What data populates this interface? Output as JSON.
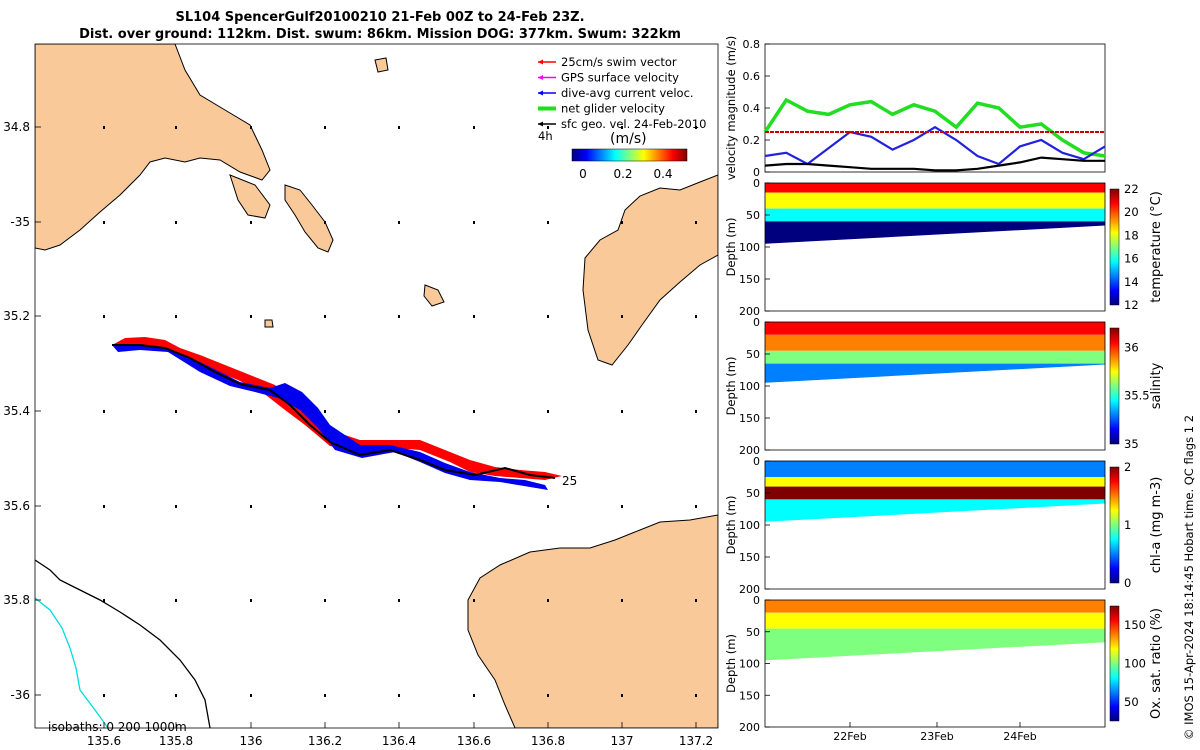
{
  "header": {
    "title_line1": "SL104 SpencerGulf20100210 21-Feb 00Z to 24-Feb 23Z.",
    "title_line2": "Dist. over ground: 112km. Dist. swum: 86km. Mission DOG: 377km. Swum: 322km"
  },
  "credit": "© IMOS 15-Apr-2024 18:14:45 Hobart time. QC flags 1  2",
  "colors": {
    "land": "#f9c99a",
    "track_red": "#ff0000",
    "track_blue": "#0000ee",
    "net_green": "#22dd22",
    "swim_line": "#cc0000",
    "isobath_0": "#000000",
    "isobath_200": "#00dddd",
    "isobath_1000": "#000000"
  },
  "map": {
    "legend": [
      {
        "label": "25cm/s swim vector",
        "color": "#ff0000",
        "icon": "arrow-icon"
      },
      {
        "label": "GPS surface velocity",
        "color": "#ff00ff",
        "icon": "arrow-icon"
      },
      {
        "label": "dive-avg current veloc.",
        "color": "#0000ff",
        "icon": "arrow-icon"
      },
      {
        "label": "net glider velocity",
        "color": "#22dd22",
        "icon": "arrow-icon"
      },
      {
        "label": "sfc geo. vel. 24-Feb-2010",
        "color": "#000000",
        "icon": "arrow-icon"
      }
    ],
    "legend_extra": "4h",
    "colorbar_title": "(m/s)",
    "colorbar_ticks": [
      "0",
      "0.2",
      "0.4"
    ],
    "isobaths_label": "isobaths: 0   200  1000m",
    "end_label": "25",
    "lon_ticks": [
      "135.6",
      "135.8",
      "136",
      "136.2",
      "136.4",
      "136.6",
      "136.8",
      "137",
      "137.2"
    ],
    "lat_ticks": [
      "34.8",
      "-35",
      "35.2",
      "35.4",
      "35.6",
      "35.8",
      "-36"
    ]
  },
  "chart_data": [
    {
      "type": "line",
      "title": "SL104 SpencerGulf20100210 21-Feb 00Z to 24-Feb 23Z.",
      "xlabel": "",
      "ylabel": "velocity magnitude (m/s)",
      "ylim": [
        0,
        0.8
      ],
      "yticks": [
        "0",
        "0.2",
        "0.4",
        "0.6",
        "0.8"
      ],
      "x": [
        0,
        0.25,
        0.5,
        0.75,
        1,
        1.25,
        1.5,
        1.75,
        2,
        2.25,
        2.5,
        2.75,
        3,
        3.25,
        3.5,
        3.75,
        4
      ],
      "series": [
        {
          "name": "net glider velocity",
          "color": "#22dd22",
          "values": [
            0.25,
            0.45,
            0.38,
            0.36,
            0.42,
            0.44,
            0.36,
            0.42,
            0.38,
            0.28,
            0.43,
            0.4,
            0.28,
            0.3,
            0.2,
            0.12,
            0.1
          ]
        },
        {
          "name": "dive-avg current veloc.",
          "color": "#2222dd",
          "values": [
            0.1,
            0.12,
            0.05,
            0.15,
            0.25,
            0.22,
            0.14,
            0.2,
            0.28,
            0.2,
            0.1,
            0.05,
            0.16,
            0.2,
            0.12,
            0.08,
            0.16
          ]
        },
        {
          "name": "sfc geo. vel. 24-Feb-2010",
          "color": "#000000",
          "values": [
            0.04,
            0.05,
            0.05,
            0.04,
            0.03,
            0.02,
            0.02,
            0.02,
            0.01,
            0.01,
            0.02,
            0.04,
            0.06,
            0.09,
            0.08,
            0.07,
            0.07
          ]
        },
        {
          "name": "25cm/s swim vector",
          "color": "#cc0000",
          "values": [
            0.25,
            0.25,
            0.25,
            0.25,
            0.25,
            0.25,
            0.25,
            0.25,
            0.25,
            0.25,
            0.25,
            0.25,
            0.25,
            0.25,
            0.25,
            0.25,
            0.25
          ]
        }
      ]
    },
    {
      "type": "heatmap",
      "ylabel": "Depth (m)",
      "clabel": "temperature (°C)",
      "ylim": [
        200,
        0
      ],
      "yticks": [
        "0",
        "50",
        "100",
        "150",
        "200"
      ],
      "colorbar_ticks": [
        "22",
        "20",
        "18",
        "16",
        "14",
        "12"
      ],
      "clim": [
        12,
        22
      ],
      "layers": [
        {
          "from_depth": 0,
          "to_depth": 15,
          "value": 20.5
        },
        {
          "from_depth": 15,
          "to_depth": 40,
          "value": 18
        },
        {
          "from_depth": 40,
          "to_depth": 60,
          "value": 15.5
        },
        {
          "from_depth": 60,
          "to_depth": 95,
          "value": 12.5
        }
      ]
    },
    {
      "type": "heatmap",
      "ylabel": "Depth (m)",
      "clabel": "salinity",
      "ylim": [
        200,
        0
      ],
      "yticks": [
        "0",
        "50",
        "100",
        "150",
        "200"
      ],
      "colorbar_ticks": [
        "36",
        "35.5",
        "35"
      ],
      "clim": [
        35,
        36.2
      ],
      "layers": [
        {
          "from_depth": 0,
          "to_depth": 20,
          "value": 36.05
        },
        {
          "from_depth": 20,
          "to_depth": 45,
          "value": 35.85
        },
        {
          "from_depth": 45,
          "to_depth": 65,
          "value": 35.55
        },
        {
          "from_depth": 65,
          "to_depth": 95,
          "value": 35.25
        }
      ]
    },
    {
      "type": "heatmap",
      "ylabel": "Depth (m)",
      "clabel": "chl-a (mg m-3)",
      "ylim": [
        200,
        0
      ],
      "yticks": [
        "0",
        "50",
        "100",
        "150",
        "200"
      ],
      "colorbar_ticks": [
        "2",
        "1",
        "0"
      ],
      "clim": [
        0,
        2
      ],
      "layers": [
        {
          "from_depth": 0,
          "to_depth": 25,
          "value": 0.4
        },
        {
          "from_depth": 25,
          "to_depth": 40,
          "value": 1.2
        },
        {
          "from_depth": 40,
          "to_depth": 60,
          "value": 2.0
        },
        {
          "from_depth": 60,
          "to_depth": 95,
          "value": 0.8
        }
      ]
    },
    {
      "type": "heatmap",
      "ylabel": "Depth (m)",
      "clabel": "Ox. sat. ratio (%)",
      "xlabel": "",
      "ylim": [
        200,
        0
      ],
      "yticks": [
        "0",
        "50",
        "100",
        "150",
        "200"
      ],
      "xticks": [
        "22Feb",
        "23Feb",
        "24Feb"
      ],
      "colorbar_ticks": [
        "150",
        "100",
        "50"
      ],
      "clim": [
        25,
        175
      ],
      "layers": [
        {
          "from_depth": 0,
          "to_depth": 20,
          "value": 145
        },
        {
          "from_depth": 20,
          "to_depth": 45,
          "value": 125
        },
        {
          "from_depth": 45,
          "to_depth": 95,
          "value": 100
        }
      ]
    }
  ]
}
